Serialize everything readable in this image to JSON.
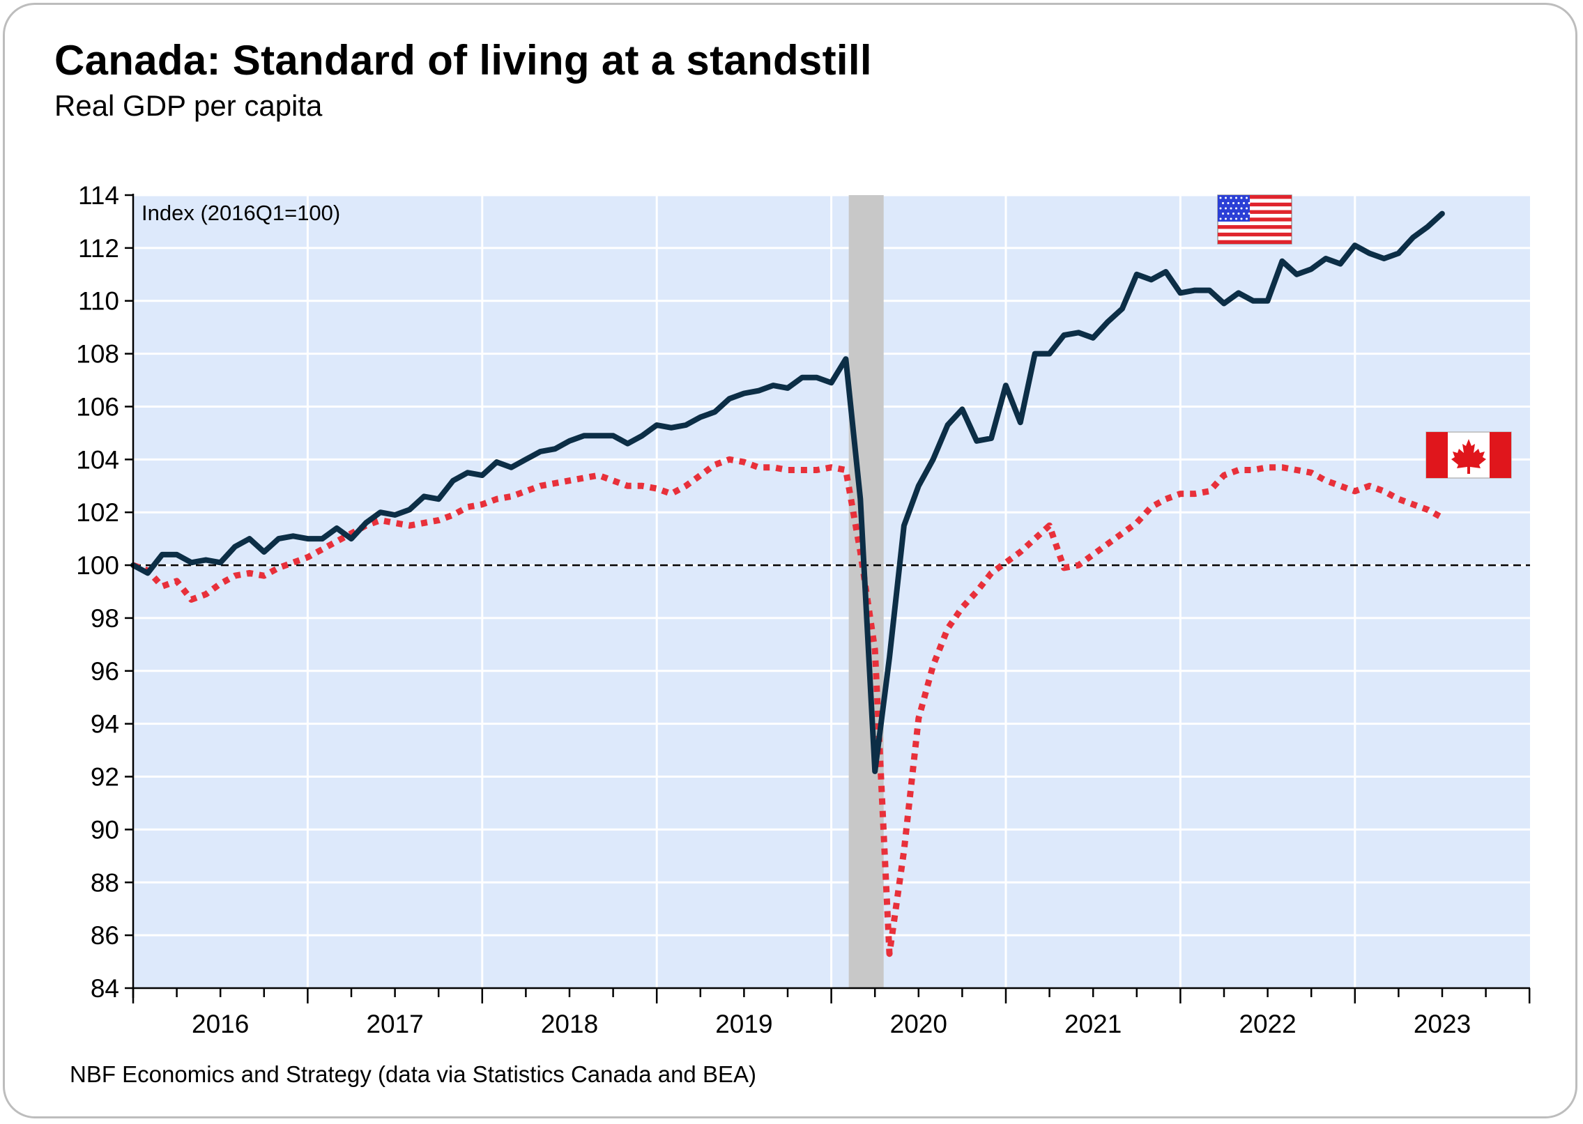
{
  "header": {
    "title": "Canada: Standard of living at a standstill",
    "subtitle": "Real GDP per capita"
  },
  "footer": {
    "source": "NBF Economics and Strategy (data via Statistics Canada and BEA)"
  },
  "colors": {
    "plot_background": "#dde9fb",
    "us_line": "#0c2e46",
    "canada_line": "#e8303a",
    "recession_band": "#c8c8c8",
    "gridline": "#ffffff"
  },
  "chart_data": {
    "type": "line",
    "title": "Canada: Standard of living at a standstill",
    "subtitle": "Real GDP per capita",
    "ylabel": "Index (2016Q1=100)",
    "xlabel": "",
    "ylim": [
      84,
      114
    ],
    "yticks": [
      84,
      86,
      88,
      90,
      92,
      94,
      96,
      98,
      100,
      102,
      104,
      106,
      108,
      110,
      112,
      114
    ],
    "xlim": [
      2016.0,
      2024.0
    ],
    "year_labels": [
      "2016",
      "2017",
      "2018",
      "2019",
      "2020",
      "2021",
      "2022",
      "2023"
    ],
    "grid": true,
    "reference_line": {
      "y": 100,
      "style": "dashed"
    },
    "recession_shading": {
      "start": 2020.1,
      "end": 2020.3
    },
    "legend": [
      {
        "name": "United States",
        "marker": "us-flag-icon",
        "position": "top-right"
      },
      {
        "name": "Canada",
        "marker": "canada-flag-icon",
        "position": "right"
      }
    ],
    "series": [
      {
        "name": "United States",
        "style": "solid",
        "x_start": 2016.0,
        "step": 0.08333,
        "values": [
          100.0,
          99.7,
          100.4,
          100.4,
          100.1,
          100.2,
          100.1,
          100.7,
          101.0,
          100.5,
          101.0,
          101.1,
          101.0,
          101.0,
          101.4,
          101.0,
          101.6,
          102.0,
          101.9,
          102.1,
          102.6,
          102.5,
          103.2,
          103.5,
          103.4,
          103.9,
          103.7,
          104.0,
          104.3,
          104.4,
          104.7,
          104.9,
          104.9,
          104.9,
          104.6,
          104.9,
          105.3,
          105.2,
          105.3,
          105.6,
          105.8,
          106.3,
          106.5,
          106.6,
          106.8,
          106.7,
          107.1,
          107.1,
          106.9,
          107.8,
          102.5,
          92.2,
          96.5,
          101.5,
          103.0,
          104.0,
          105.3,
          105.9,
          104.7,
          104.8,
          106.8,
          105.4,
          108.0,
          108.0,
          108.7,
          108.8,
          108.6,
          109.2,
          109.7,
          111.0,
          110.8,
          111.1,
          110.3,
          110.4,
          110.4,
          109.9,
          110.3,
          110.0,
          110.0,
          111.5,
          111.0,
          111.2,
          111.6,
          111.4,
          112.1,
          111.8,
          111.6,
          111.8,
          112.4,
          112.8,
          113.3
        ]
      },
      {
        "name": "Canada",
        "style": "dotted",
        "x_start": 2016.0,
        "step": 0.08333,
        "values": [
          100.0,
          99.8,
          99.2,
          99.4,
          98.7,
          98.9,
          99.3,
          99.6,
          99.7,
          99.6,
          99.9,
          100.1,
          100.3,
          100.6,
          100.9,
          101.2,
          101.5,
          101.7,
          101.6,
          101.5,
          101.6,
          101.7,
          101.9,
          102.2,
          102.3,
          102.5,
          102.6,
          102.8,
          103.0,
          103.1,
          103.2,
          103.3,
          103.4,
          103.2,
          103.0,
          103.0,
          102.9,
          102.7,
          103.0,
          103.4,
          103.8,
          104.0,
          103.9,
          103.7,
          103.7,
          103.6,
          103.6,
          103.6,
          103.7,
          103.6,
          100.5,
          96.8,
          85.3,
          89.2,
          94.2,
          96.2,
          97.6,
          98.4,
          99.0,
          99.7,
          100.1,
          100.5,
          101.0,
          101.5,
          99.9,
          100.0,
          100.4,
          100.8,
          101.2,
          101.6,
          102.2,
          102.5,
          102.7,
          102.7,
          102.8,
          103.4,
          103.6,
          103.6,
          103.7,
          103.7,
          103.6,
          103.5,
          103.2,
          103.0,
          102.8,
          103.0,
          102.8,
          102.5,
          102.3,
          102.1,
          101.8
        ]
      }
    ]
  }
}
